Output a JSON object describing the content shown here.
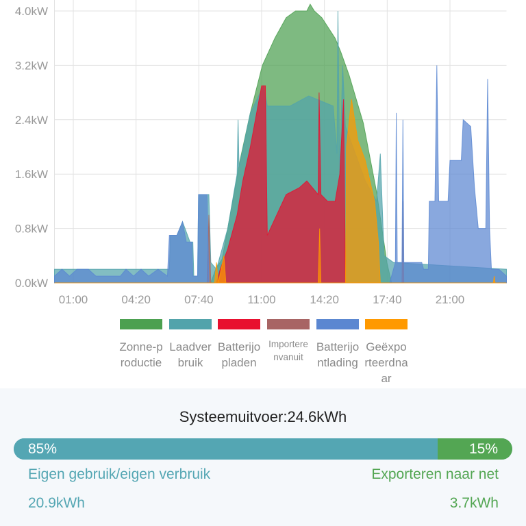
{
  "chart_data": {
    "type": "area",
    "title": "",
    "xlabel": "",
    "ylabel": "",
    "xlim": [
      0,
      24
    ],
    "ylim": [
      0,
      4.0
    ],
    "grid": true,
    "x_ticks": [
      {
        "v": 1,
        "label": "01:00"
      },
      {
        "v": 4.333,
        "label": "04:20"
      },
      {
        "v": 7.667,
        "label": "07:40"
      },
      {
        "v": 11,
        "label": "11:00"
      },
      {
        "v": 14.333,
        "label": "14:20"
      },
      {
        "v": 17.667,
        "label": "17:40"
      },
      {
        "v": 21,
        "label": "21:00"
      }
    ],
    "y_ticks": [
      {
        "v": 0,
        "label": "0.0kW"
      },
      {
        "v": 0.8,
        "label": "0.8kW"
      },
      {
        "v": 1.6,
        "label": "1.6kW"
      },
      {
        "v": 2.4,
        "label": "2.4kW"
      },
      {
        "v": 3.2,
        "label": "3.2kW"
      },
      {
        "v": 4.0,
        "label": "4.0kW"
      }
    ],
    "legend_position": "bottom",
    "series": [
      {
        "name": "Zonne-productie",
        "color": "#4ca050",
        "points": [
          [
            0,
            0
          ],
          [
            8.3,
            0
          ],
          [
            8.56,
            0.2
          ],
          [
            8.9,
            0.35
          ],
          [
            9.2,
            0.8
          ],
          [
            9.85,
            1.8
          ],
          [
            10.4,
            2.5
          ],
          [
            11.04,
            3.2
          ],
          [
            11.7,
            3.6
          ],
          [
            12.3,
            3.9
          ],
          [
            12.8,
            4.0
          ],
          [
            13.4,
            4.0
          ],
          [
            13.58,
            4.1
          ],
          [
            13.8,
            4.0
          ],
          [
            14.2,
            3.9
          ],
          [
            14.9,
            3.6
          ],
          [
            15.2,
            3.4
          ],
          [
            15.65,
            3.05
          ],
          [
            16.4,
            2.35
          ],
          [
            17.1,
            1.34
          ],
          [
            17.65,
            0.3
          ],
          [
            17.9,
            0
          ],
          [
            24,
            0
          ]
        ]
      },
      {
        "name": "Laadverbruik",
        "color": "#52a3ab",
        "points": [
          [
            0,
            0.2
          ],
          [
            6.1,
            0.2
          ],
          [
            6.15,
            0.7
          ],
          [
            6.5,
            0.7
          ],
          [
            6.8,
            0.9
          ],
          [
            7.2,
            0.6
          ],
          [
            7.35,
            0.6
          ],
          [
            7.4,
            0.1
          ],
          [
            7.6,
            0.1
          ],
          [
            7.65,
            1.3
          ],
          [
            8.2,
            1.3
          ],
          [
            8.3,
            0.3
          ],
          [
            8.6,
            0.2
          ],
          [
            9.2,
            0.8
          ],
          [
            9.7,
            1.6
          ],
          [
            9.75,
            2.4
          ],
          [
            9.8,
            1.7
          ],
          [
            10.4,
            2.5
          ],
          [
            11.1,
            2.9
          ],
          [
            11.3,
            2.6
          ],
          [
            12.5,
            2.6
          ],
          [
            13.5,
            2.75
          ],
          [
            14.8,
            2.6
          ],
          [
            15.0,
            1.9
          ],
          [
            15.05,
            4.0
          ],
          [
            15.15,
            1.6
          ],
          [
            15.3,
            3.2
          ],
          [
            15.45,
            2.3
          ],
          [
            16.5,
            1.5
          ],
          [
            17.1,
            1.2
          ],
          [
            17.3,
            1.9
          ],
          [
            17.5,
            0.4
          ],
          [
            18.0,
            0.3
          ],
          [
            24,
            0.2
          ]
        ]
      },
      {
        "name": "Batterij opladen",
        "color": "#e8102f",
        "points": [
          [
            0,
            0
          ],
          [
            8.6,
            0
          ],
          [
            8.8,
            0.2
          ],
          [
            9.2,
            0.5
          ],
          [
            9.7,
            1.0
          ],
          [
            10.0,
            1.5
          ],
          [
            10.4,
            2.0
          ],
          [
            11.0,
            2.9
          ],
          [
            11.2,
            2.9
          ],
          [
            11.3,
            0.7
          ],
          [
            11.8,
            1.0
          ],
          [
            12.3,
            1.3
          ],
          [
            13.0,
            1.4
          ],
          [
            13.4,
            1.5
          ],
          [
            14.0,
            1.3
          ],
          [
            14.05,
            2.8
          ],
          [
            14.15,
            1.3
          ],
          [
            14.5,
            1.2
          ],
          [
            14.9,
            1.2
          ],
          [
            15.15,
            1.6
          ],
          [
            15.35,
            2.7
          ],
          [
            15.45,
            0
          ],
          [
            24,
            0
          ]
        ]
      },
      {
        "name": "Importeren vanuit",
        "color": "#a86464",
        "points": [
          [
            0,
            0
          ],
          [
            8.1,
            0
          ],
          [
            8.2,
            1.0
          ],
          [
            8.3,
            0
          ],
          [
            18.45,
            0
          ],
          [
            18.5,
            1.2
          ],
          [
            18.55,
            0
          ],
          [
            24,
            0
          ]
        ]
      },
      {
        "name": "Batterijontlading",
        "color": "#5b87d1",
        "points": [
          [
            0,
            0.1
          ],
          [
            0.4,
            0.2
          ],
          [
            0.8,
            0.1
          ],
          [
            1.2,
            0.2
          ],
          [
            1.8,
            0.2
          ],
          [
            2.2,
            0.1
          ],
          [
            3.5,
            0.1
          ],
          [
            3.8,
            0.2
          ],
          [
            4.2,
            0.1
          ],
          [
            4.6,
            0.2
          ],
          [
            5.0,
            0.1
          ],
          [
            5.5,
            0.2
          ],
          [
            6.0,
            0.1
          ],
          [
            6.1,
            0.7
          ],
          [
            6.5,
            0.7
          ],
          [
            6.8,
            0.9
          ],
          [
            7.0,
            0.6
          ],
          [
            7.3,
            0.6
          ],
          [
            7.35,
            0.1
          ],
          [
            7.6,
            0.1
          ],
          [
            7.65,
            1.3
          ],
          [
            8.1,
            1.3
          ],
          [
            8.2,
            0
          ],
          [
            17.8,
            0
          ],
          [
            18.0,
            0.2
          ],
          [
            18.1,
            0.3
          ],
          [
            18.15,
            2.5
          ],
          [
            18.2,
            0.3
          ],
          [
            18.45,
            0.3
          ],
          [
            18.5,
            2.4
          ],
          [
            18.55,
            0.3
          ],
          [
            19.5,
            0.3
          ],
          [
            19.6,
            0.2
          ],
          [
            19.85,
            0.2
          ],
          [
            19.9,
            1.2
          ],
          [
            20.2,
            1.2
          ],
          [
            20.3,
            3.2
          ],
          [
            20.4,
            1.2
          ],
          [
            20.9,
            1.2
          ],
          [
            21.0,
            1.8
          ],
          [
            21.6,
            1.8
          ],
          [
            21.7,
            2.4
          ],
          [
            22.1,
            2.3
          ],
          [
            22.3,
            1.4
          ],
          [
            22.5,
            0.8
          ],
          [
            22.9,
            0.8
          ],
          [
            23.0,
            3.0
          ],
          [
            23.1,
            0.8
          ],
          [
            23.2,
            0.2
          ],
          [
            23.6,
            0.2
          ],
          [
            24,
            0.1
          ]
        ]
      },
      {
        "name": "Geëxporteerd naar",
        "color": "#ff9900",
        "points": [
          [
            0,
            0
          ],
          [
            8.5,
            0
          ],
          [
            8.6,
            0.3
          ],
          [
            8.7,
            0
          ],
          [
            9.0,
            0.4
          ],
          [
            9.1,
            0
          ],
          [
            14.0,
            0
          ],
          [
            14.08,
            0.8
          ],
          [
            14.15,
            0
          ],
          [
            15.45,
            0
          ],
          [
            15.5,
            2.0
          ],
          [
            15.77,
            2.7
          ],
          [
            16.1,
            2.1
          ],
          [
            16.5,
            1.8
          ],
          [
            17.0,
            1.2
          ],
          [
            17.2,
            0.6
          ],
          [
            17.3,
            0
          ],
          [
            23.3,
            0
          ],
          [
            23.35,
            0.1
          ],
          [
            23.4,
            0
          ],
          [
            24,
            0
          ]
        ]
      }
    ]
  },
  "legend": [
    {
      "label": "Zonne-productie",
      "color": "#4ca050"
    },
    {
      "label": "Laadverbruik",
      "color": "#52a3ab"
    },
    {
      "label": "Batterijopladen",
      "color": "#e8102f"
    },
    {
      "label": "Importerenvanuit",
      "color": "#a86464"
    },
    {
      "label": "Batterijontlading",
      "color": "#5b87d1"
    },
    {
      "label": "Geëxporteerdnaar",
      "color": "#ff9900"
    }
  ],
  "summary": {
    "title": "Systeemuitvoer:24.6kWh",
    "self_use_percent": 85,
    "export_percent": 15,
    "self_use_percent_label": "85%",
    "export_percent_label": "15%",
    "self_use_label": "Eigen gebruik/eigen verbruik",
    "export_label": "Exporteren naar net",
    "self_use_value": "20.9kWh",
    "export_value": "3.7kWh"
  }
}
